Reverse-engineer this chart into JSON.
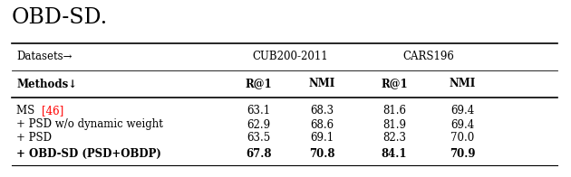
{
  "title": "OBD-SD.",
  "dataset_label": "Datasets→",
  "datasets": [
    "CUB200-2011",
    "CARS196"
  ],
  "metrics_label": "Methods↓",
  "metrics": [
    "R@1",
    "NMI",
    "R@1",
    "NMI"
  ],
  "rows": [
    {
      "method": "MS ",
      "citation": "[46]",
      "values": [
        "63.1",
        "68.3",
        "81.6",
        "69.4"
      ],
      "bold": false,
      "ref_color": true
    },
    {
      "method": "+ PSD w/o dynamic weight",
      "citation": null,
      "values": [
        "62.9",
        "68.6",
        "81.9",
        "69.4"
      ],
      "bold": false,
      "ref_color": false
    },
    {
      "method": "+ PSD",
      "citation": null,
      "values": [
        "63.5",
        "69.1",
        "82.3",
        "70.0"
      ],
      "bold": false,
      "ref_color": false
    },
    {
      "method": "+ OBD-SD (PSD+OBDP)",
      "citation": null,
      "values": [
        "67.8",
        "70.8",
        "84.1",
        "70.9"
      ],
      "bold": true,
      "ref_color": false
    }
  ],
  "background_color": "#ffffff",
  "text_color": "#000000",
  "ref_color": "#ff0000",
  "fontsize_title": 17,
  "fontsize_header": 8.5,
  "fontsize_data": 8.5
}
